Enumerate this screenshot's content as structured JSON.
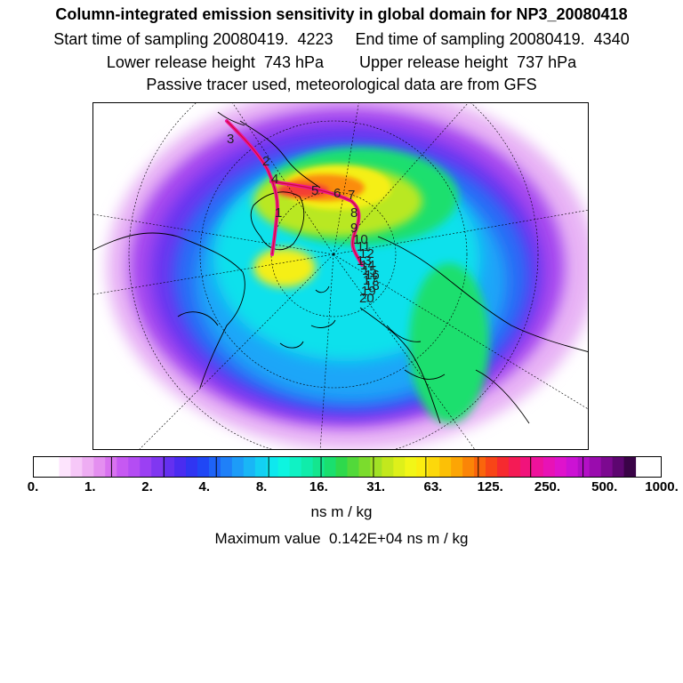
{
  "titles": {
    "line1": "Column-integrated emission sensitivity in global domain for NP3_20080418",
    "line2": "Start time of sampling 20080419.  4223     End time of sampling 20080419.  4340",
    "line3": "Lower release height  743 hPa        Upper release height  737 hPa",
    "line4": "Passive tracer used, meteorological data are from GFS"
  },
  "colorbar": {
    "colors": [
      "#fde4fd",
      "#f6c8f8",
      "#eeadf3",
      "#e48ff0",
      "#d872ef",
      "#c659f2",
      "#b44df3",
      "#9b40f3",
      "#8037f1",
      "#6430f0",
      "#4a2cf0",
      "#3035f2",
      "#2047f5",
      "#1e63f7",
      "#1f80f8",
      "#1d9cf8",
      "#19b6f6",
      "#13d0f3",
      "#0ee8ee",
      "#0df5e0",
      "#10f2c4",
      "#10ecaa",
      "#14e68e",
      "#1adf6e",
      "#2ed94c",
      "#52d93a",
      "#7bdc2d",
      "#a2e225",
      "#c3e81d",
      "#def01a",
      "#f2f617",
      "#fbee10",
      "#fcd80b",
      "#fcc006",
      "#fca505",
      "#fb8507",
      "#fa650c",
      "#f84517",
      "#f62a2f",
      "#f41b55",
      "#f1137b",
      "#ee129c",
      "#e812b6",
      "#df13cc",
      "#cc12d4",
      "#b30fc6",
      "#9a0cae",
      "#7c0990",
      "#5d0670",
      "#3a0347"
    ],
    "ticks": [
      "0.",
      "1.",
      "2.",
      "4.",
      "8.",
      "16.",
      "31.",
      "63.",
      "125.",
      "250.",
      "500.",
      "1000."
    ],
    "units": "ns m / kg",
    "max_label": "Maximum value  0.142E+04 ns m / kg"
  },
  "map": {
    "colors": {
      "background": "#ffffff",
      "outer_halo": "#e8b4f5",
      "purple": "#a546ef",
      "violet": "#6a34f0",
      "blue": "#2c6af6",
      "light_blue": "#1fa6f8",
      "cyan": "#10e1ec",
      "green": "#1adf6e",
      "yellow_green": "#b9e820",
      "yellow": "#f5ef14",
      "orange": "#fb8c07",
      "red": "#f43c35",
      "magenta": "#ef1296",
      "track": "#cc1030"
    },
    "track_points": [
      "3",
      "2",
      "4",
      "1",
      "5",
      "6",
      "7",
      "8",
      "9",
      "10",
      "11",
      "12",
      "13",
      "14",
      "15",
      "16",
      "17",
      "18",
      "19",
      "20"
    ]
  }
}
